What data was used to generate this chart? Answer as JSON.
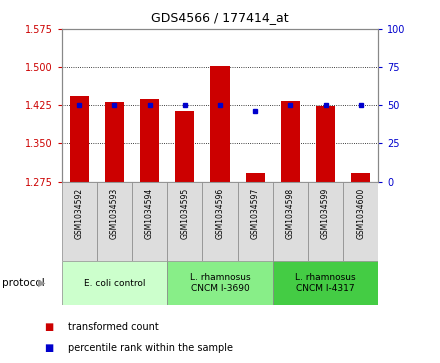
{
  "title": "GDS4566 / 177414_at",
  "samples": [
    "GSM1034592",
    "GSM1034593",
    "GSM1034594",
    "GSM1034595",
    "GSM1034596",
    "GSM1034597",
    "GSM1034598",
    "GSM1034599",
    "GSM1034600"
  ],
  "transformed_count": [
    1.443,
    1.432,
    1.437,
    1.413,
    1.502,
    1.292,
    1.433,
    1.424,
    1.291
  ],
  "percentile_rank": [
    50,
    50,
    50,
    50,
    50,
    46,
    50,
    50,
    50
  ],
  "ylim_left": [
    1.275,
    1.575
  ],
  "ylim_right": [
    0,
    100
  ],
  "yticks_left": [
    1.275,
    1.35,
    1.425,
    1.5,
    1.575
  ],
  "yticks_right": [
    0,
    25,
    50,
    75,
    100
  ],
  "bar_color": "#cc0000",
  "dot_color": "#0000cc",
  "bar_baseline": 1.275,
  "group_labels": [
    "E. coli control",
    "L. rhamnosus\nCNCM I-3690",
    "L. rhamnosus\nCNCM I-4317"
  ],
  "group_colors": [
    "#ccffcc",
    "#88ee88",
    "#44cc44"
  ],
  "group_starts": [
    0,
    3,
    6
  ],
  "group_ends": [
    3,
    6,
    9
  ],
  "legend_bar_label": "transformed count",
  "legend_dot_label": "percentile rank within the sample",
  "protocol_label": "protocol",
  "background_color": "#ffffff",
  "tick_color_left": "#cc0000",
  "tick_color_right": "#0000cc",
  "sample_box_color": "#dddddd",
  "spine_color": "#888888"
}
